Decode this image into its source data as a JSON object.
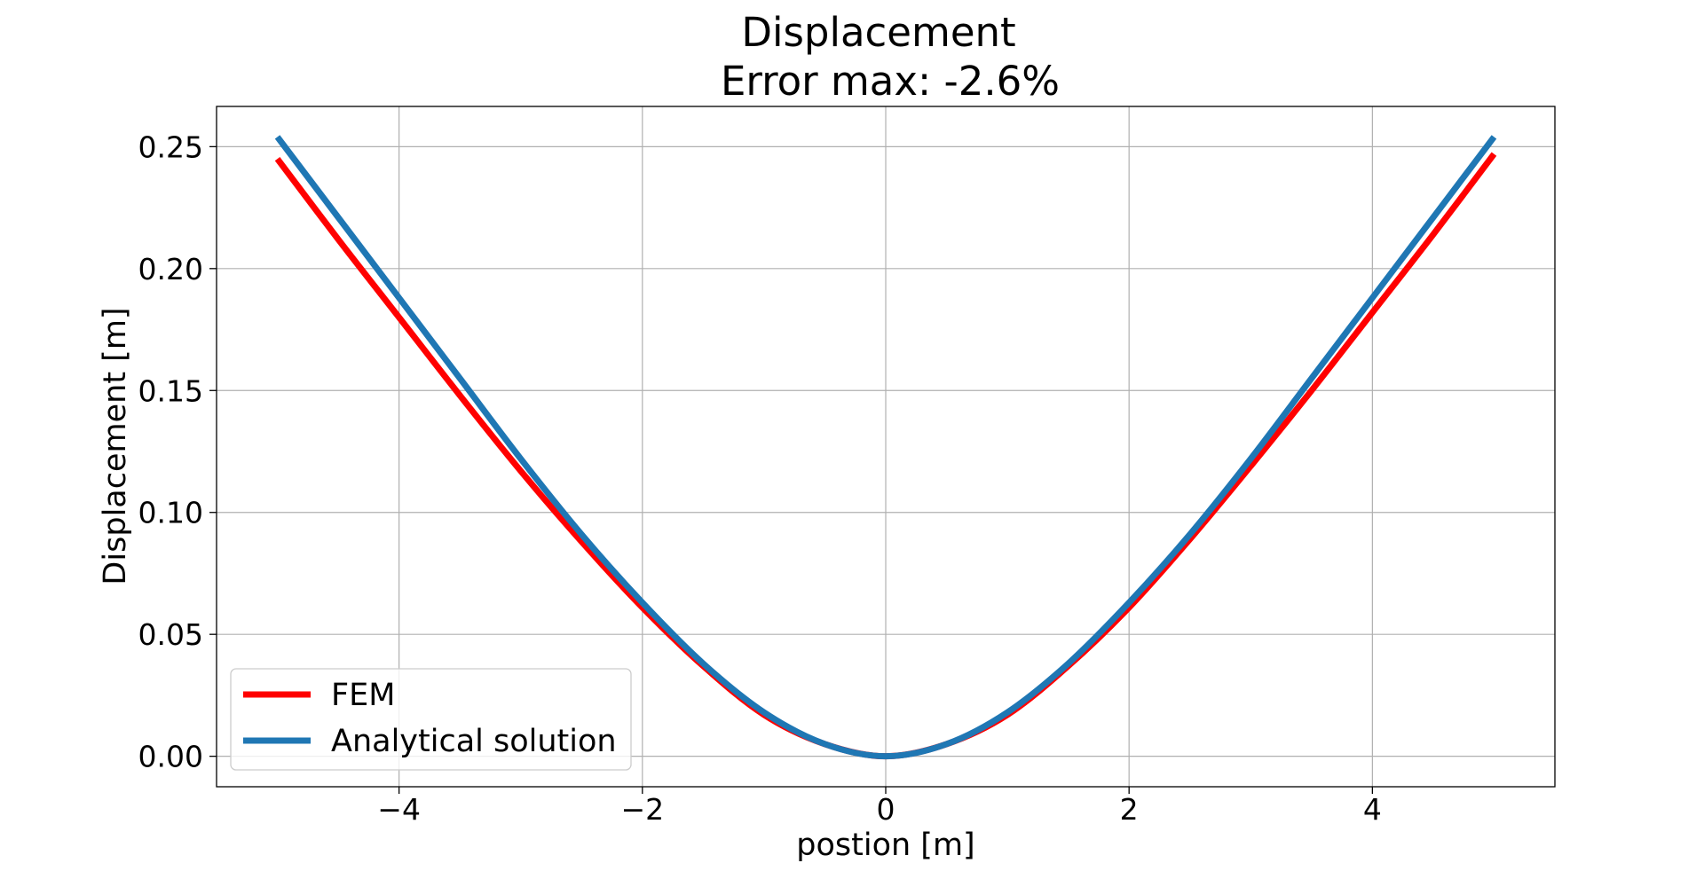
{
  "chart_data": {
    "type": "line",
    "title": "Displacement",
    "subtitle": "Error max: -2.6%",
    "xlabel": "postion [m]",
    "ylabel": "Displacement [m]",
    "xlim": [
      -5.5,
      5.5
    ],
    "ylim": [
      -0.0125,
      0.2665
    ],
    "xticks": [
      -4,
      -2,
      0,
      2,
      4
    ],
    "xtick_labels": [
      "−4",
      "−2",
      "0",
      "2",
      "4"
    ],
    "yticks": [
      0.0,
      0.05,
      0.1,
      0.15,
      0.2,
      0.25
    ],
    "ytick_labels": [
      "0.00",
      "0.05",
      "0.10",
      "0.15",
      "0.20",
      "0.25"
    ],
    "grid": true,
    "legend_position": "lower-left",
    "series": [
      {
        "name": "FEM",
        "color": "#ff0000",
        "x": [
          -5,
          -4.5,
          -4,
          -3.5,
          -3,
          -2.5,
          -2,
          -1.5,
          -1,
          -0.5,
          0,
          0.5,
          1,
          1.5,
          2,
          2.5,
          3,
          3.5,
          4,
          4.5,
          5
        ],
        "y": [
          0.245,
          0.212,
          0.18,
          0.148,
          0.117,
          0.088,
          0.061,
          0.037,
          0.017,
          0.005,
          0.0,
          0.005,
          0.017,
          0.037,
          0.061,
          0.089,
          0.119,
          0.15,
          0.182,
          0.214,
          0.247
        ]
      },
      {
        "name": "Analytical solution",
        "color": "#1f77b4",
        "x": [
          -5,
          -4.5,
          -4,
          -3.5,
          -3,
          -2.5,
          -2,
          -1.5,
          -1,
          -0.5,
          0,
          0.5,
          1,
          1.5,
          2,
          2.5,
          3,
          3.5,
          4,
          4.5,
          5
        ],
        "y": [
          0.254,
          0.221,
          0.188,
          0.155,
          0.122,
          0.091,
          0.063,
          0.038,
          0.018,
          0.005,
          0.0,
          0.005,
          0.018,
          0.038,
          0.063,
          0.091,
          0.122,
          0.155,
          0.188,
          0.221,
          0.254
        ]
      }
    ]
  }
}
